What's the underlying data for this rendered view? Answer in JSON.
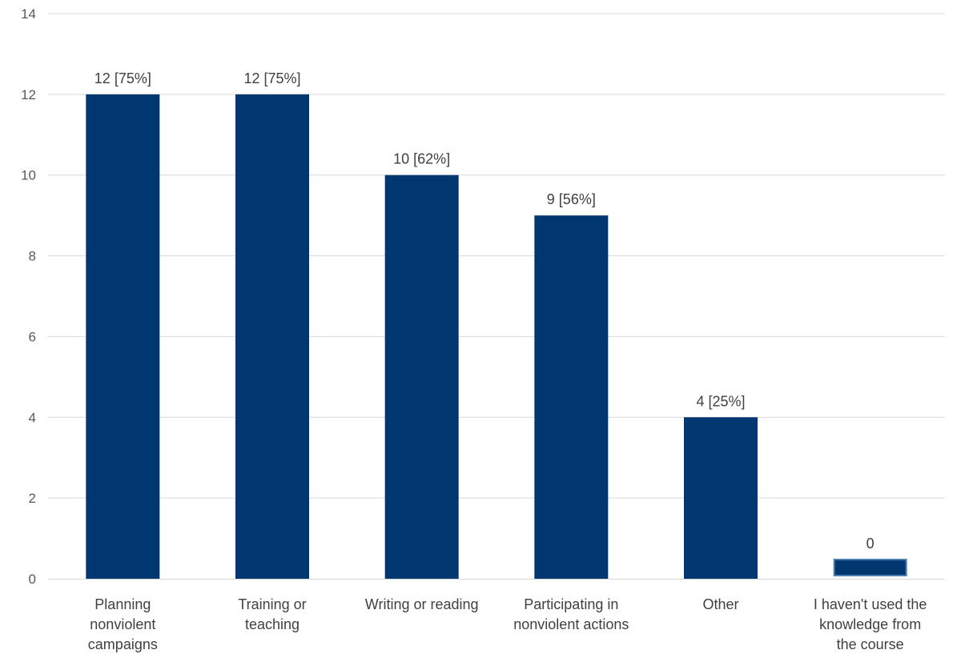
{
  "chart_data": {
    "type": "bar",
    "title": "",
    "xlabel": "",
    "ylabel": "",
    "ylim": [
      0,
      14
    ],
    "yticks": [
      0,
      2,
      4,
      6,
      8,
      10,
      12,
      14
    ],
    "grid": true,
    "categories": [
      [
        "Planning",
        "nonviolent",
        "campaigns"
      ],
      [
        "Training or",
        "teaching"
      ],
      [
        "Writing or reading"
      ],
      [
        "Participating in",
        "nonviolent actions"
      ],
      [
        "Other"
      ],
      [
        "I haven't used the",
        "knowledge from",
        "the course"
      ]
    ],
    "values": [
      12,
      12,
      10,
      9,
      4,
      0
    ],
    "data_labels": [
      "12 [75%]",
      "12 [75%]",
      "10 [62%]",
      "9 [56%]",
      "4 [25%]",
      "0"
    ],
    "bar_color": "#003770",
    "zero_bar_fill": "#00376e",
    "zero_bar_border": "#4a7fb0"
  }
}
